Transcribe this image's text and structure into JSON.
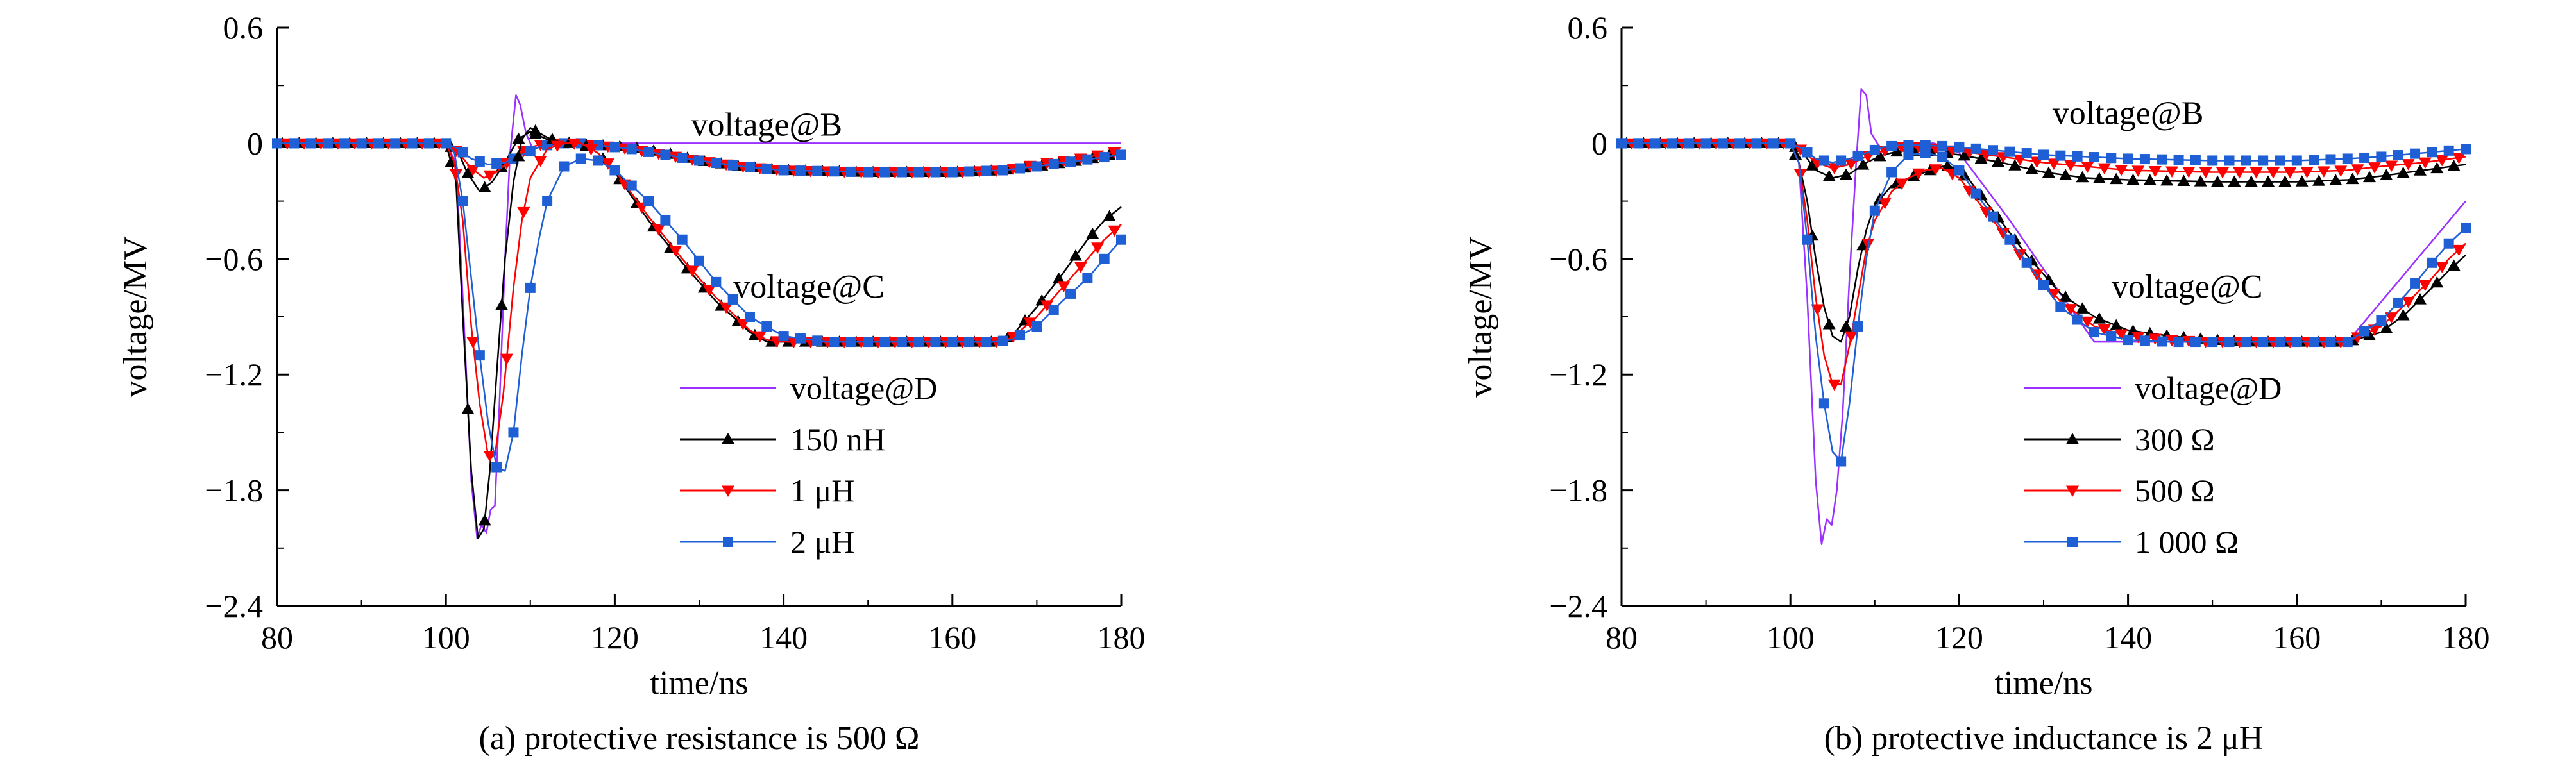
{
  "chart_data": [
    {
      "type": "line",
      "caption": "(a) protective resistance is 500 Ω",
      "xlabel": "time/ns",
      "ylabel": "voltage/MV",
      "xlim": [
        80,
        180
      ],
      "ylim": [
        -2.4,
        0.6
      ],
      "xticks": [
        80,
        100,
        120,
        140,
        160,
        180
      ],
      "xtick_labels": [
        "80",
        "100",
        "120",
        "140",
        "160",
        "180"
      ],
      "yticks": [
        0.6,
        0,
        -0.6,
        -1.2,
        -1.8,
        -2.4
      ],
      "ytick_labels": [
        "0.6",
        "0",
        "−0.6",
        "−1.2",
        "−1.8",
        "−2.4"
      ],
      "grid": false,
      "legend_position": "lower-right",
      "annotations": [
        {
          "text": "voltage@B",
          "x": 138,
          "y": 0.04
        },
        {
          "text": "voltage@C",
          "x": 143,
          "y": -0.8
        }
      ],
      "colors": {
        "voltage@D": "#9b30ff",
        "black": "#000000",
        "red": "#ff0000",
        "blue": "#1f5fd6"
      },
      "legend": [
        {
          "label": "voltage@D",
          "color": "#9b30ff",
          "marker": "none"
        },
        {
          "label": "150 nH",
          "color": "#000000",
          "marker": "triangle-up"
        },
        {
          "label": "1 μH",
          "color": "#ff0000",
          "marker": "triangle-down"
        },
        {
          "label": "2 μH",
          "color": "#1f5fd6",
          "marker": "square"
        }
      ],
      "series": [
        {
          "name": "voltage@D",
          "color": "#9b30ff",
          "marker": "none",
          "x": [
            80,
            100,
            101.2,
            102,
            103,
            103.7,
            104.2,
            104.8,
            105.3,
            105.8,
            106.3,
            107,
            107.6,
            108.3,
            108.8,
            109.5,
            110.3,
            112,
            116,
            120,
            180
          ],
          "y": [
            0,
            0,
            -0.1,
            -0.8,
            -1.75,
            -2.05,
            -1.98,
            -2.02,
            -1.9,
            -1.88,
            -1.4,
            -0.6,
            -0.05,
            0.25,
            0.2,
            0.05,
            -0.03,
            -0.01,
            0,
            0,
            0
          ]
        },
        {
          "name": "voltage@B (150 nH)",
          "color": "#000000",
          "marker": "triangle-up",
          "x": [
            80,
            100,
            101.5,
            102.5,
            104,
            105.5,
            107,
            108.5,
            110,
            112,
            115,
            118,
            122,
            126,
            130,
            135,
            140,
            150,
            160,
            166,
            170,
            175,
            180
          ],
          "y": [
            0,
            0,
            -0.05,
            -0.15,
            -0.25,
            -0.2,
            -0.1,
            0.02,
            0.06,
            0.02,
            0,
            -0.01,
            -0.02,
            -0.05,
            -0.09,
            -0.12,
            -0.14,
            -0.15,
            -0.15,
            -0.14,
            -0.12,
            -0.09,
            -0.05
          ]
        },
        {
          "name": "voltage@B (1 μH)",
          "color": "#ff0000",
          "marker": "triangle-down",
          "x": [
            80,
            100,
            101.5,
            103,
            104.5,
            106,
            108,
            110,
            112,
            115,
            118,
            122,
            126,
            130,
            135,
            140,
            150,
            160,
            166,
            170,
            175,
            180
          ],
          "y": [
            0,
            0,
            -0.05,
            -0.13,
            -0.18,
            -0.15,
            -0.07,
            -0.02,
            0,
            0,
            -0.01,
            -0.03,
            -0.06,
            -0.09,
            -0.12,
            -0.14,
            -0.15,
            -0.15,
            -0.14,
            -0.11,
            -0.08,
            -0.04
          ]
        },
        {
          "name": "voltage@B (2 μH)",
          "color": "#1f5fd6",
          "marker": "square",
          "x": [
            80,
            100,
            101.5,
            103,
            105,
            107,
            109,
            111,
            113,
            116,
            118,
            122,
            126,
            130,
            135,
            140,
            150,
            160,
            166,
            170,
            175,
            180
          ],
          "y": [
            0,
            0,
            -0.03,
            -0.08,
            -0.11,
            -0.1,
            -0.06,
            -0.02,
            0,
            0,
            -0.01,
            -0.03,
            -0.06,
            -0.09,
            -0.12,
            -0.14,
            -0.15,
            -0.15,
            -0.14,
            -0.12,
            -0.09,
            -0.06
          ]
        },
        {
          "name": "voltage@C (150 nH)",
          "color": "#000000",
          "marker": "triangle-up",
          "x": [
            80,
            100,
            101.2,
            102,
            103,
            103.8,
            104.5,
            105.2,
            106,
            107,
            108,
            109,
            110,
            112,
            114,
            116,
            118,
            120,
            124,
            128,
            132,
            136,
            138,
            140,
            145,
            150,
            155,
            160,
            165,
            167,
            170,
            173,
            176,
            178,
            180
          ],
          "y": [
            0,
            0,
            -0.2,
            -0.9,
            -1.7,
            -2.05,
            -2.0,
            -1.7,
            -1.2,
            -0.6,
            -0.2,
            0.02,
            0.08,
            0.03,
            0,
            0,
            -0.05,
            -0.15,
            -0.4,
            -0.62,
            -0.82,
            -0.98,
            -1.03,
            -1.03,
            -1.03,
            -1.03,
            -1.03,
            -1.03,
            -1.03,
            -1.0,
            -0.85,
            -0.68,
            -0.5,
            -0.4,
            -0.33
          ]
        },
        {
          "name": "voltage@C (1 μH)",
          "color": "#ff0000",
          "marker": "triangle-down",
          "x": [
            80,
            100,
            101,
            102,
            103,
            104,
            105,
            105.8,
            106.8,
            108,
            109,
            110,
            112,
            114,
            116,
            118,
            120,
            124,
            128,
            132,
            136,
            138,
            140,
            145,
            150,
            155,
            160,
            165,
            167,
            170,
            173,
            176,
            178,
            180
          ],
          "y": [
            0,
            0,
            -0.1,
            -0.4,
            -0.95,
            -1.35,
            -1.62,
            -1.62,
            -1.3,
            -0.75,
            -0.4,
            -0.18,
            -0.03,
            0,
            0,
            -0.05,
            -0.14,
            -0.38,
            -0.6,
            -0.8,
            -0.97,
            -1.02,
            -1.03,
            -1.03,
            -1.03,
            -1.03,
            -1.03,
            -1.03,
            -1.01,
            -0.9,
            -0.75,
            -0.6,
            -0.5,
            -0.42
          ]
        },
        {
          "name": "voltage@C (2 μH)",
          "color": "#1f5fd6",
          "marker": "square",
          "x": [
            80,
            100,
            101,
            102,
            103,
            104,
            105,
            106,
            107,
            108,
            109,
            110,
            111,
            112,
            114,
            116,
            118,
            120,
            124,
            128,
            132,
            136,
            140,
            145,
            150,
            155,
            160,
            165,
            167,
            170,
            173,
            176,
            178,
            180
          ],
          "y": [
            0,
            0,
            -0.05,
            -0.3,
            -0.7,
            -1.1,
            -1.45,
            -1.68,
            -1.7,
            -1.5,
            -1.1,
            -0.75,
            -0.5,
            -0.3,
            -0.12,
            -0.08,
            -0.09,
            -0.14,
            -0.3,
            -0.5,
            -0.72,
            -0.9,
            -1.0,
            -1.03,
            -1.03,
            -1.03,
            -1.03,
            -1.03,
            -1.02,
            -0.95,
            -0.82,
            -0.7,
            -0.6,
            -0.5
          ]
        }
      ]
    },
    {
      "type": "line",
      "caption": "(b) protective inductance is 2 μH",
      "xlabel": "time/ns",
      "ylabel": "voltage/MV",
      "xlim": [
        80,
        180
      ],
      "ylim": [
        -2.4,
        0.6
      ],
      "xticks": [
        80,
        100,
        120,
        140,
        160,
        180
      ],
      "xtick_labels": [
        "80",
        "100",
        "120",
        "140",
        "160",
        "180"
      ],
      "yticks": [
        0.6,
        0,
        -0.6,
        -1.2,
        -1.8,
        -2.4
      ],
      "ytick_labels": [
        "0.6",
        "0",
        "−0.6",
        "−1.2",
        "−1.8",
        "−2.4"
      ],
      "grid": false,
      "legend_position": "lower-right",
      "annotations": [
        {
          "text": "voltage@B",
          "x": 140,
          "y": 0.1
        },
        {
          "text": "voltage@C",
          "x": 147,
          "y": -0.8
        }
      ],
      "colors": {
        "voltage@D": "#9b30ff",
        "black": "#000000",
        "red": "#ff0000",
        "blue": "#1f5fd6"
      },
      "legend": [
        {
          "label": "voltage@D",
          "color": "#9b30ff",
          "marker": "none"
        },
        {
          "label": "300 Ω",
          "color": "#000000",
          "marker": "triangle-up"
        },
        {
          "label": "500 Ω",
          "color": "#ff0000",
          "marker": "triangle-down"
        },
        {
          "label": "1 000 Ω",
          "color": "#1f5fd6",
          "marker": "square"
        }
      ],
      "series": [
        {
          "name": "voltage@D",
          "color": "#9b30ff",
          "marker": "none",
          "x": [
            80,
            100,
            101,
            102,
            103,
            103.7,
            104.3,
            104.9,
            105.5,
            106.2,
            107,
            107.8,
            108.4,
            109,
            109.6,
            110.3,
            111,
            112,
            114,
            117,
            120,
            126,
            132,
            136,
            166,
            180
          ],
          "y": [
            0,
            0,
            -0.1,
            -0.8,
            -1.75,
            -2.08,
            -1.95,
            -1.98,
            -1.8,
            -1.4,
            -0.7,
            -0.1,
            0.28,
            0.25,
            0.05,
            0,
            -0.05,
            -0.02,
            0,
            0,
            -0.05,
            -0.4,
            -0.78,
            -1.03,
            -1.03,
            -0.3
          ]
        },
        {
          "name": "voltage@B (300 Ω)",
          "color": "#000000",
          "marker": "triangle-up",
          "x": [
            80,
            100,
            101.5,
            103,
            105,
            107,
            109,
            111,
            113,
            116,
            120,
            125,
            130,
            135,
            140,
            150,
            160,
            166,
            170,
            175,
            180
          ],
          "y": [
            0,
            0,
            -0.05,
            -0.14,
            -0.18,
            -0.16,
            -0.1,
            -0.06,
            -0.04,
            -0.04,
            -0.06,
            -0.1,
            -0.15,
            -0.18,
            -0.19,
            -0.2,
            -0.2,
            -0.19,
            -0.17,
            -0.14,
            -0.11
          ]
        },
        {
          "name": "voltage@B (500 Ω)",
          "color": "#ff0000",
          "marker": "triangle-down",
          "x": [
            80,
            100,
            101.5,
            103,
            105,
            107,
            109,
            111,
            113,
            116,
            120,
            125,
            130,
            135,
            140,
            150,
            160,
            166,
            170,
            175,
            180
          ],
          "y": [
            0,
            0,
            -0.04,
            -0.1,
            -0.13,
            -0.11,
            -0.07,
            -0.04,
            -0.02,
            -0.02,
            -0.04,
            -0.07,
            -0.1,
            -0.12,
            -0.14,
            -0.15,
            -0.15,
            -0.14,
            -0.12,
            -0.1,
            -0.07
          ]
        },
        {
          "name": "voltage@B (1 000 Ω)",
          "color": "#1f5fd6",
          "marker": "square",
          "x": [
            80,
            100,
            101.5,
            103,
            105,
            107,
            109,
            111,
            113,
            116,
            120,
            125,
            130,
            135,
            140,
            150,
            160,
            166,
            170,
            175,
            180
          ],
          "y": [
            0,
            0,
            -0.03,
            -0.08,
            -0.1,
            -0.08,
            -0.05,
            -0.02,
            -0.01,
            -0.01,
            -0.02,
            -0.04,
            -0.06,
            -0.07,
            -0.08,
            -0.09,
            -0.09,
            -0.08,
            -0.07,
            -0.05,
            -0.03
          ]
        },
        {
          "name": "voltage@C (300 Ω)",
          "color": "#000000",
          "marker": "triangle-up",
          "x": [
            80,
            100,
            101,
            102,
            103,
            104,
            105,
            106,
            107,
            108,
            109,
            110,
            112,
            114,
            116,
            118,
            119,
            121,
            124,
            128,
            132,
            136,
            140,
            145,
            150,
            155,
            160,
            166,
            170,
            173,
            176,
            178,
            180
          ],
          "y": [
            0,
            0,
            -0.1,
            -0.3,
            -0.6,
            -0.85,
            -1.0,
            -1.03,
            -0.9,
            -0.65,
            -0.45,
            -0.32,
            -0.22,
            -0.18,
            -0.15,
            -0.12,
            -0.12,
            -0.18,
            -0.35,
            -0.58,
            -0.78,
            -0.9,
            -0.97,
            -1.0,
            -1.02,
            -1.03,
            -1.03,
            -1.03,
            -0.98,
            -0.88,
            -0.75,
            -0.66,
            -0.58
          ]
        },
        {
          "name": "voltage@C (500 Ω)",
          "color": "#ff0000",
          "marker": "triangle-down",
          "x": [
            80,
            100,
            101,
            102,
            103,
            104,
            105,
            106,
            107,
            108,
            109,
            110,
            112,
            114,
            116,
            118,
            120,
            124,
            128,
            132,
            136,
            140,
            145,
            150,
            155,
            160,
            166,
            170,
            173,
            176,
            178,
            180
          ],
          "y": [
            0,
            0,
            -0.1,
            -0.4,
            -0.8,
            -1.1,
            -1.25,
            -1.25,
            -1.05,
            -0.8,
            -0.55,
            -0.4,
            -0.25,
            -0.18,
            -0.14,
            -0.13,
            -0.18,
            -0.4,
            -0.62,
            -0.82,
            -0.95,
            -1.0,
            -1.02,
            -1.03,
            -1.03,
            -1.03,
            -1.03,
            -0.95,
            -0.83,
            -0.7,
            -0.6,
            -0.52
          ]
        },
        {
          "name": "voltage@C (1 000 Ω)",
          "color": "#1f5fd6",
          "marker": "square",
          "x": [
            80,
            100,
            101,
            102,
            103,
            104,
            105,
            106,
            107,
            108,
            109,
            110,
            112,
            114,
            116,
            118,
            120,
            124,
            128,
            132,
            136,
            140,
            145,
            150,
            155,
            160,
            166,
            170,
            173,
            176,
            178,
            180
          ],
          "y": [
            0,
            0,
            -0.1,
            -0.5,
            -1.0,
            -1.35,
            -1.6,
            -1.65,
            -1.35,
            -0.95,
            -0.6,
            -0.35,
            -0.15,
            -0.06,
            -0.05,
            -0.07,
            -0.14,
            -0.38,
            -0.62,
            -0.85,
            -0.98,
            -1.02,
            -1.03,
            -1.03,
            -1.03,
            -1.03,
            -1.03,
            -0.92,
            -0.78,
            -0.62,
            -0.52,
            -0.44
          ]
        }
      ]
    }
  ]
}
